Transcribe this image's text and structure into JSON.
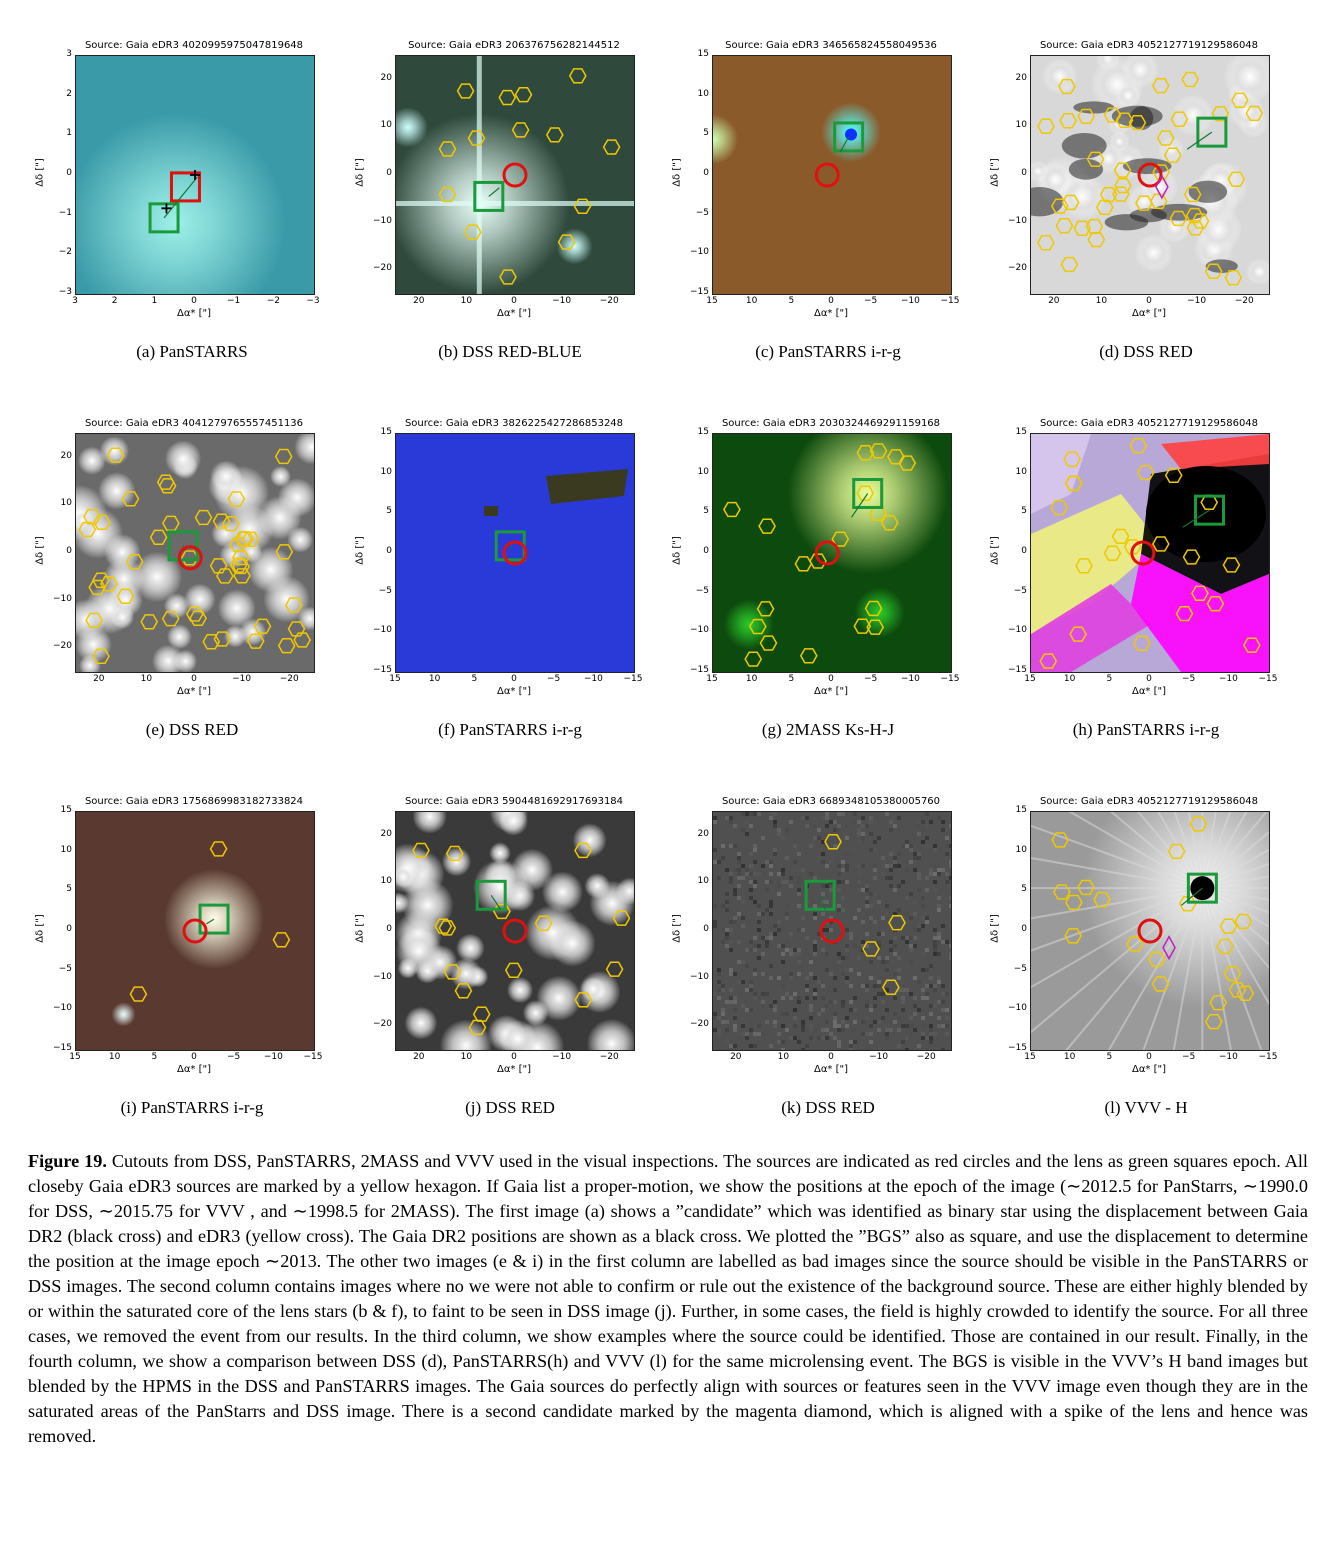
{
  "panels": [
    {
      "source": "Source: Gaia eDR3 4020995975047819648",
      "caption": "(a) PanSTARRS",
      "yticks": [
        "3",
        "2",
        "1",
        "0",
        "−1",
        "−2",
        "−3"
      ],
      "xticks": [
        "3",
        "2",
        "1",
        "0",
        "−1",
        "−2",
        "−3"
      ],
      "bg": "#3a9aa8"
    },
    {
      "source": "Source: Gaia eDR3 2063767562821445​12",
      "caption": "(b) DSS RED-BLUE",
      "yticks": [
        "20",
        "10",
        "0",
        "−10",
        "−20"
      ],
      "xticks": [
        "20",
        "10",
        "0",
        "−10",
        "−20"
      ],
      "bg": "#2f4a3c"
    },
    {
      "source": "Source: Gaia eDR3 3465658245580495​36",
      "caption": "(c) PanSTARRS i-r-g",
      "yticks": [
        "15",
        "10",
        "5",
        "0",
        "−5",
        "−10",
        "−15"
      ],
      "xticks": [
        "15",
        "10",
        "5",
        "0",
        "−5",
        "−10",
        "−15"
      ],
      "bg": "#8a5a2a"
    },
    {
      "source": "Source: Gaia eDR3 4052127719129586048",
      "caption": "(d) DSS RED",
      "yticks": [
        "20",
        "10",
        "0",
        "−10",
        "−20"
      ],
      "xticks": [
        "20",
        "10",
        "0",
        "−10",
        "−20"
      ],
      "bg": "#d8d8d8"
    },
    {
      "source": "Source: Gaia eDR3 4041279765557451136",
      "caption": "(e) DSS RED",
      "yticks": [
        "20",
        "10",
        "0",
        "−10",
        "−20"
      ],
      "xticks": [
        "20",
        "10",
        "0",
        "−10",
        "−20"
      ],
      "bg": "#6a6a6a"
    },
    {
      "source": "Source: Gaia eDR3 3826225427286853248",
      "caption": "(f) PanSTARRS i-r-g",
      "yticks": [
        "15",
        "10",
        "5",
        "0",
        "−5",
        "−10",
        "−15"
      ],
      "xticks": [
        "15",
        "10",
        "5",
        "0",
        "−5",
        "−10",
        "−15"
      ],
      "bg": "#2a3ad8"
    },
    {
      "source": "Source: Gaia eDR3 2030324469291159168",
      "caption": "(g) 2MASS Ks-H-J",
      "yticks": [
        "15",
        "10",
        "5",
        "0",
        "−5",
        "−10",
        "−15"
      ],
      "xticks": [
        "15",
        "10",
        "5",
        "0",
        "−5",
        "−10",
        "−15"
      ],
      "bg": "#0d4a0d"
    },
    {
      "source": "Source: Gaia eDR3 4052127719129586048",
      "caption": "(h) PanSTARRS i-r-g",
      "yticks": [
        "15",
        "10",
        "5",
        "0",
        "−5",
        "−10",
        "−15"
      ],
      "xticks": [
        "15",
        "10",
        "5",
        "0",
        "−5",
        "−10",
        "−15"
      ],
      "bg": "#b8a8d8"
    },
    {
      "source": "Source: Gaia eDR3 1756869983182733824",
      "caption": "(i) PanSTARRS i-r-g",
      "yticks": [
        "15",
        "10",
        "5",
        "0",
        "−5",
        "−10",
        "−15"
      ],
      "xticks": [
        "15",
        "10",
        "5",
        "0",
        "−5",
        "−10",
        "−15"
      ],
      "bg": "#5a3a30"
    },
    {
      "source": "Source: Gaia eDR3 5904481692917693184",
      "caption": "(j) DSS RED",
      "yticks": [
        "20",
        "10",
        "0",
        "−10",
        "−20"
      ],
      "xticks": [
        "20",
        "10",
        "0",
        "−10",
        "−20"
      ],
      "bg": "#3a3a3a"
    },
    {
      "source": "Source: Gaia eDR3 6689348105380005760",
      "caption": "(k) DSS RED",
      "yticks": [
        "20",
        "10",
        "0",
        "−10",
        "−20"
      ],
      "xticks": [
        "20",
        "10",
        "0",
        "−10",
        "−20"
      ],
      "bg": "#505050"
    },
    {
      "source": "Source: Gaia eDR3 4052127719129586048",
      "caption": "(l) VVV - H",
      "yticks": [
        "15",
        "10",
        "5",
        "0",
        "−5",
        "−10",
        "−15"
      ],
      "xticks": [
        "15",
        "10",
        "5",
        "0",
        "−5",
        "−10",
        "−15"
      ],
      "bg": "#9a9a9a"
    }
  ],
  "axis": {
    "ylabel": "Δδ [\"]",
    "xlabel": "Δα* [\"]"
  },
  "caption": {
    "label": "Figure 19.",
    "text": " Cutouts from DSS, PanSTARRS, 2MASS and VVV used in the visual inspections. The sources are indicated as red circles and the lens as green squares epoch. All closeby Gaia eDR3 sources are marked by a yellow hexagon. If Gaia list a proper-motion, we show the positions at the epoch of the image (∼2012.5 for PanStarrs, ∼1990.0 for DSS, ∼2015.75 for VVV , and ∼1998.5 for 2MASS). The first image (a) shows a ”candidate” which was identified as binary star using the displacement between Gaia DR2 (black cross) and eDR3 (yellow cross). The Gaia DR2 positions are shown as a black cross. We plotted the ”BGS” also as square, and use the displacement to determine the position at the image epoch ∼2013. The other two images (e & i) in the first column are labelled as bad images since the source should be visible in the PanSTARRS or DSS images. The second column contains images where no we were not able to confirm or rule out the existence of the background source. These are either highly blended by or within the saturated core of the lens stars (b & f), to faint to be seen in DSS image (j). Further, in some cases, the field is highly crowded to identify the source. For all three cases, we removed the event from our results. In the third column, we show examples where the source could be identified. Those are contained in our result. Finally, in the fourth column, we show a comparison between DSS (d), PanSTARRS(h) and VVV (l) for the same microlensing event. The BGS is visible in the VVV’s H band images but blended by the HPMS in the DSS and PanSTARRS images. The Gaia sources do perfectly align with sources or features seen in the VVV image even though they are in the saturated areas of the PanStarrs and DSS image. There is a second candidate marked by the magenta diamond, which is aligned with a spike of the lens and hence was removed."
  }
}
